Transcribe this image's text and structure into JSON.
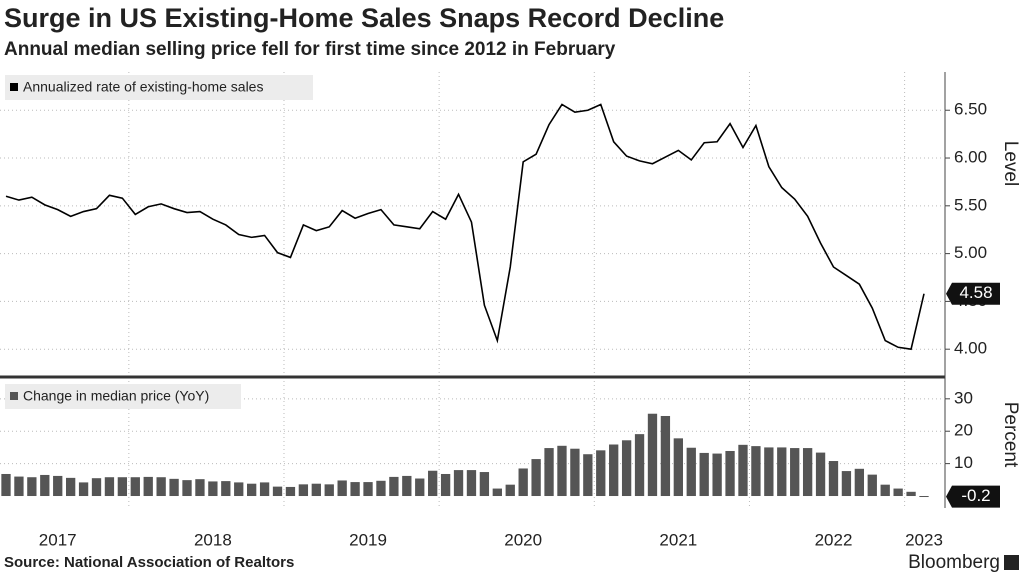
{
  "title": "Surge in US Existing-Home Sales Snaps Record Decline",
  "subtitle": "Annual median selling price fell for first time since 2012 in February",
  "source": "Source:  National Association of Realtors",
  "logo": "Bloomberg",
  "chart_data": [
    {
      "type": "line",
      "legend": "Annualized rate of existing-home sales",
      "y_label": "Level",
      "color": "#000000",
      "values": [
        5.6,
        5.56,
        5.59,
        5.51,
        5.46,
        5.39,
        5.44,
        5.47,
        5.61,
        5.58,
        5.41,
        5.49,
        5.52,
        5.47,
        5.43,
        5.44,
        5.36,
        5.3,
        5.2,
        5.17,
        5.19,
        5.01,
        4.96,
        5.3,
        5.24,
        5.28,
        5.45,
        5.37,
        5.42,
        5.46,
        5.3,
        5.28,
        5.26,
        5.44,
        5.36,
        5.62,
        5.33,
        4.46,
        4.09,
        4.86,
        5.96,
        6.04,
        6.35,
        6.56,
        6.48,
        6.5,
        6.56,
        6.17,
        6.02,
        5.97,
        5.94,
        6.01,
        6.08,
        5.98,
        6.16,
        6.17,
        6.36,
        6.11,
        6.34,
        5.91,
        5.69,
        5.57,
        5.39,
        5.11,
        4.86,
        4.77,
        4.68,
        4.43,
        4.09,
        4.02,
        4.0,
        4.58
      ],
      "ylim": [
        3.73,
        6.9
      ],
      "yticks": [
        {
          "value": 4,
          "label": "4.00"
        },
        {
          "value": 4.5,
          "label": "4.50"
        },
        {
          "value": 5,
          "label": "5.00"
        },
        {
          "value": 5.5,
          "label": "5.50"
        },
        {
          "value": 6,
          "label": "6.00"
        },
        {
          "value": 6.5,
          "label": "6.50"
        }
      ],
      "grid": true
    },
    {
      "type": "bar",
      "legend": "Change in median price (YoY)",
      "y_label": "Percent",
      "color": "#555555",
      "categories": [
        null,
        null,
        null,
        null,
        "2017",
        null,
        null,
        null,
        null,
        null,
        null,
        null,
        null,
        null,
        null,
        null,
        "2018",
        null,
        null,
        null,
        null,
        null,
        null,
        null,
        null,
        null,
        null,
        null,
        "2019",
        null,
        null,
        null,
        null,
        null,
        null,
        null,
        null,
        null,
        null,
        null,
        "2020",
        null,
        null,
        null,
        null,
        null,
        null,
        null,
        null,
        null,
        null,
        null,
        "2021",
        null,
        null,
        null,
        null,
        null,
        null,
        null,
        null,
        null,
        null,
        null,
        "2022",
        null,
        null,
        null,
        null,
        null,
        null,
        "2023"
      ],
      "values": [
        6.8,
        6.0,
        5.8,
        6.5,
        6.2,
        5.6,
        4.2,
        5.5,
        5.8,
        5.8,
        5.8,
        5.9,
        5.8,
        5.3,
        4.9,
        5.2,
        4.5,
        4.6,
        4.2,
        3.8,
        4.2,
        2.9,
        2.8,
        3.6,
        3.8,
        3.6,
        4.8,
        4.3,
        4.3,
        4.7,
        5.9,
        6.2,
        5.4,
        7.8,
        6.8,
        8.0,
        8.0,
        7.4,
        2.3,
        3.5,
        8.5,
        11.4,
        14.8,
        15.5,
        14.6,
        12.9,
        14.1,
        15.9,
        17.2,
        19.1,
        25.4,
        24.7,
        17.8,
        14.9,
        13.3,
        13.1,
        13.9,
        15.8,
        15.4,
        15.0,
        15.0,
        14.8,
        14.8,
        13.4,
        10.8,
        7.7,
        8.4,
        6.6,
        3.5,
        2.3,
        1.3,
        -0.2
      ],
      "ylim": [
        -3.7,
        35.5
      ],
      "yticks": [
        10,
        20,
        30
      ],
      "grid": true
    }
  ]
}
